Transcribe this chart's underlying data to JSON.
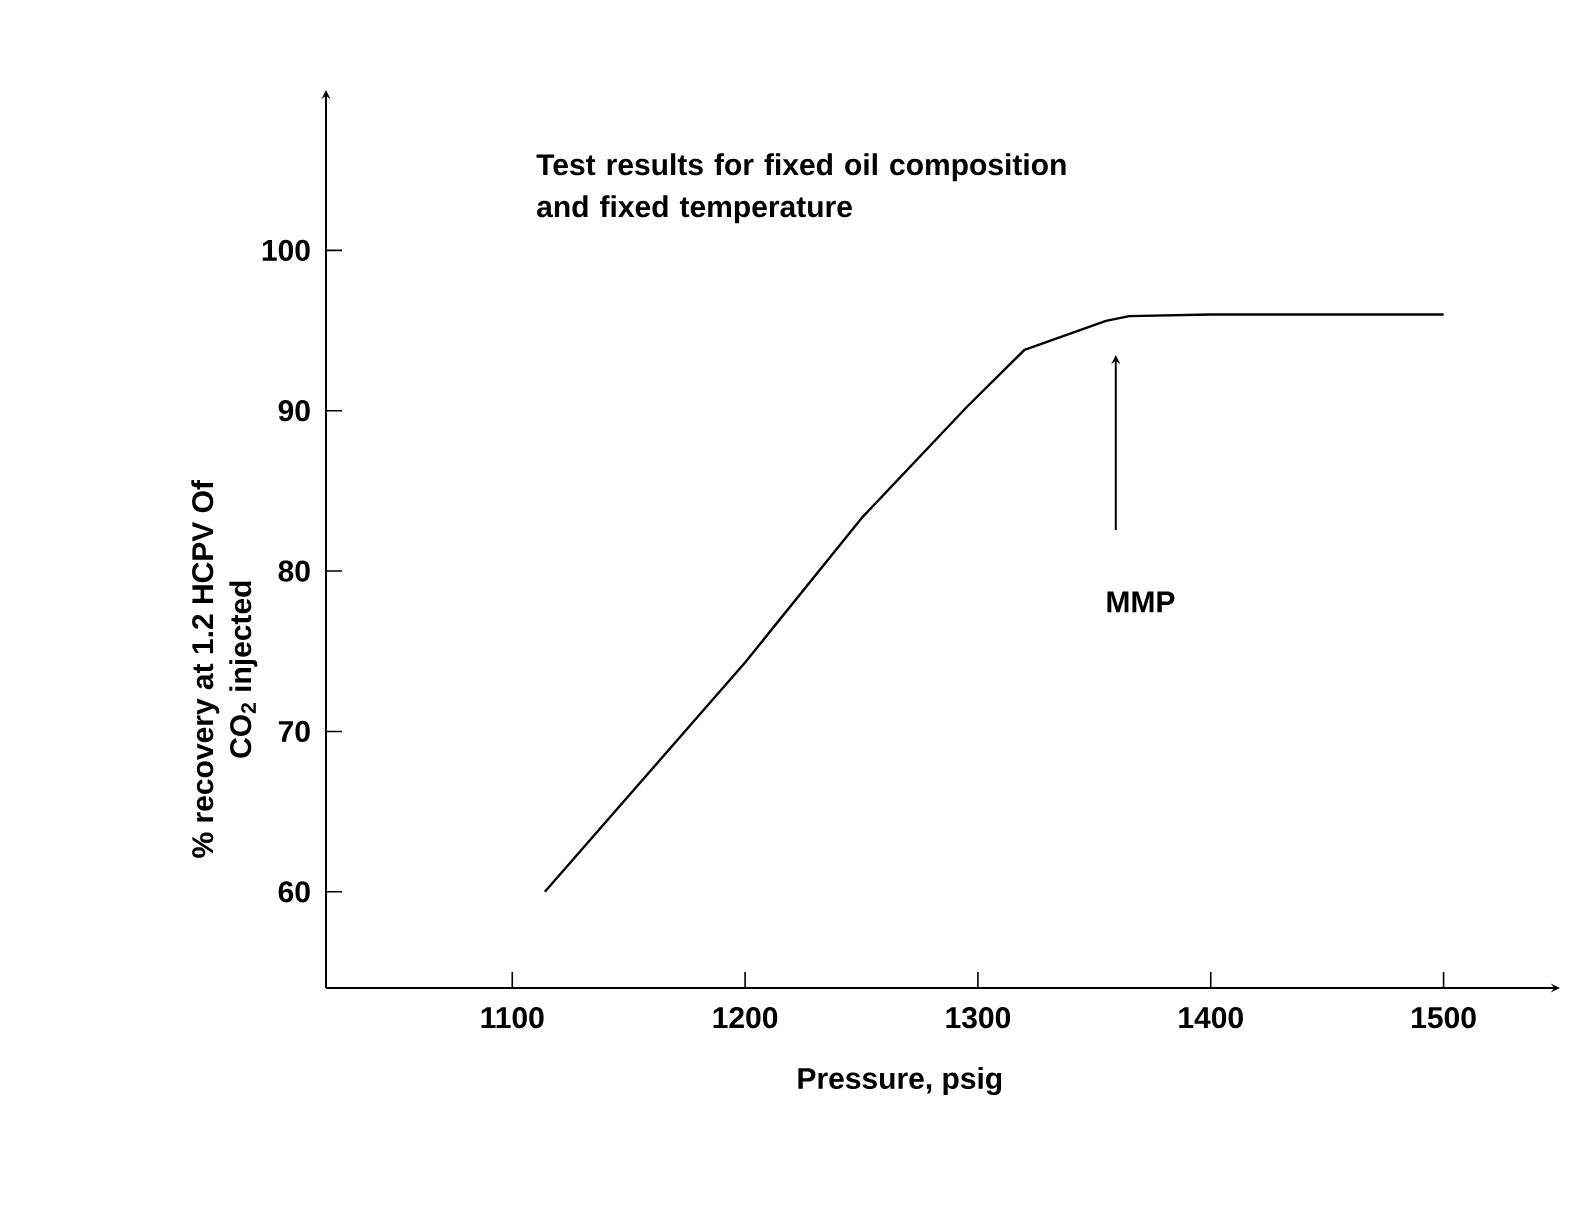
{
  "chart_data": {
    "type": "line",
    "title": "Test results for fixed oil composition and fixed temperature",
    "xlabel": "Pressure, psig",
    "ylabel": "% recovery at 1.2 HCPV Of CO$_{2}$ injected",
    "x": [
      1114,
      1200,
      1250,
      1295,
      1320,
      1355,
      1365,
      1400,
      1500
    ],
    "series": [
      {
        "color": "#000000",
        "values": [
          60,
          74.3,
          83.3,
          90.2,
          93.8,
          95.6,
          95.9,
          96,
          96
        ]
      }
    ],
    "xlim": [
      1020,
      1550
    ],
    "ylim": [
      54,
      110
    ],
    "xticks": [
      1100,
      1200,
      1300,
      1400,
      1500
    ],
    "yticks": [
      60,
      70,
      80,
      90,
      100
    ],
    "annotations": [
      "MMP"
    ],
    "grid": false,
    "legend": false,
    "marker": "none",
    "line_style": "solid"
  }
}
